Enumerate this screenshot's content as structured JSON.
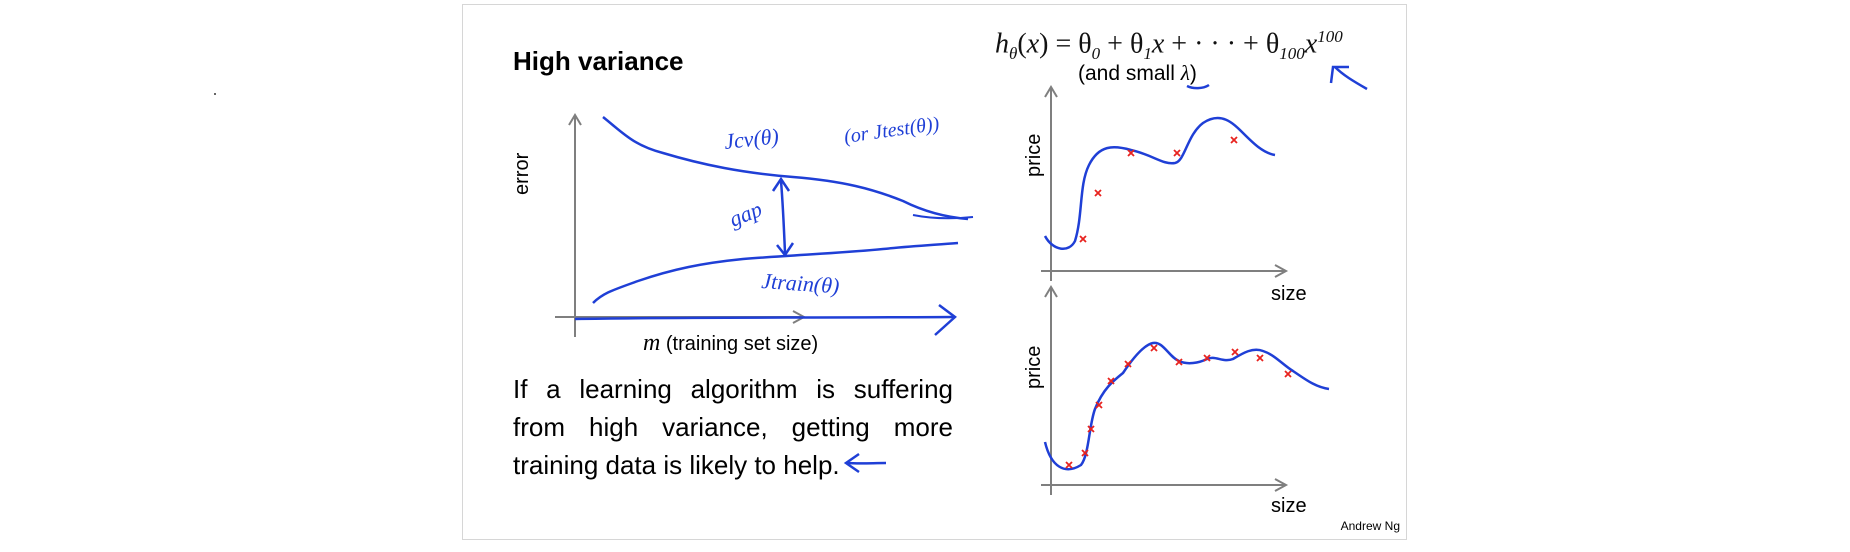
{
  "title": "High variance",
  "formula": {
    "lhs": "h",
    "lhs_sub": "θ",
    "rhs_var": "x",
    "eq_text": "= θ",
    "t0": "0",
    "plus1": " + θ",
    "t1": "1",
    "x": "x",
    "dots": " + · · · + θ",
    "t100": "100",
    "x2": "x",
    "exp": "100"
  },
  "lambda_note": {
    "prefix": "(and small ",
    "symbol": "λ",
    "suffix": ")"
  },
  "learning_curve": {
    "ylabel": "error",
    "xlabel_symbol": "m",
    "xlabel_text": " (training set size)",
    "jcv_label": "Jcv(θ)",
    "jtest_label": "(or Jtest(θ))",
    "gap_label": "gap",
    "jtrain_label": "Jtrain(θ)"
  },
  "message": "If a learning algorithm is suffering from high variance, getting more training data is likely to help.",
  "plot_top": {
    "ylabel": "price",
    "xlabel": "size"
  },
  "plot_bottom": {
    "ylabel": "price",
    "xlabel": "size"
  },
  "credit": "Andrew Ng",
  "colors": {
    "ink": "#1f3fd6",
    "marker": "#e8231f",
    "axis": "#7f7f7f"
  }
}
